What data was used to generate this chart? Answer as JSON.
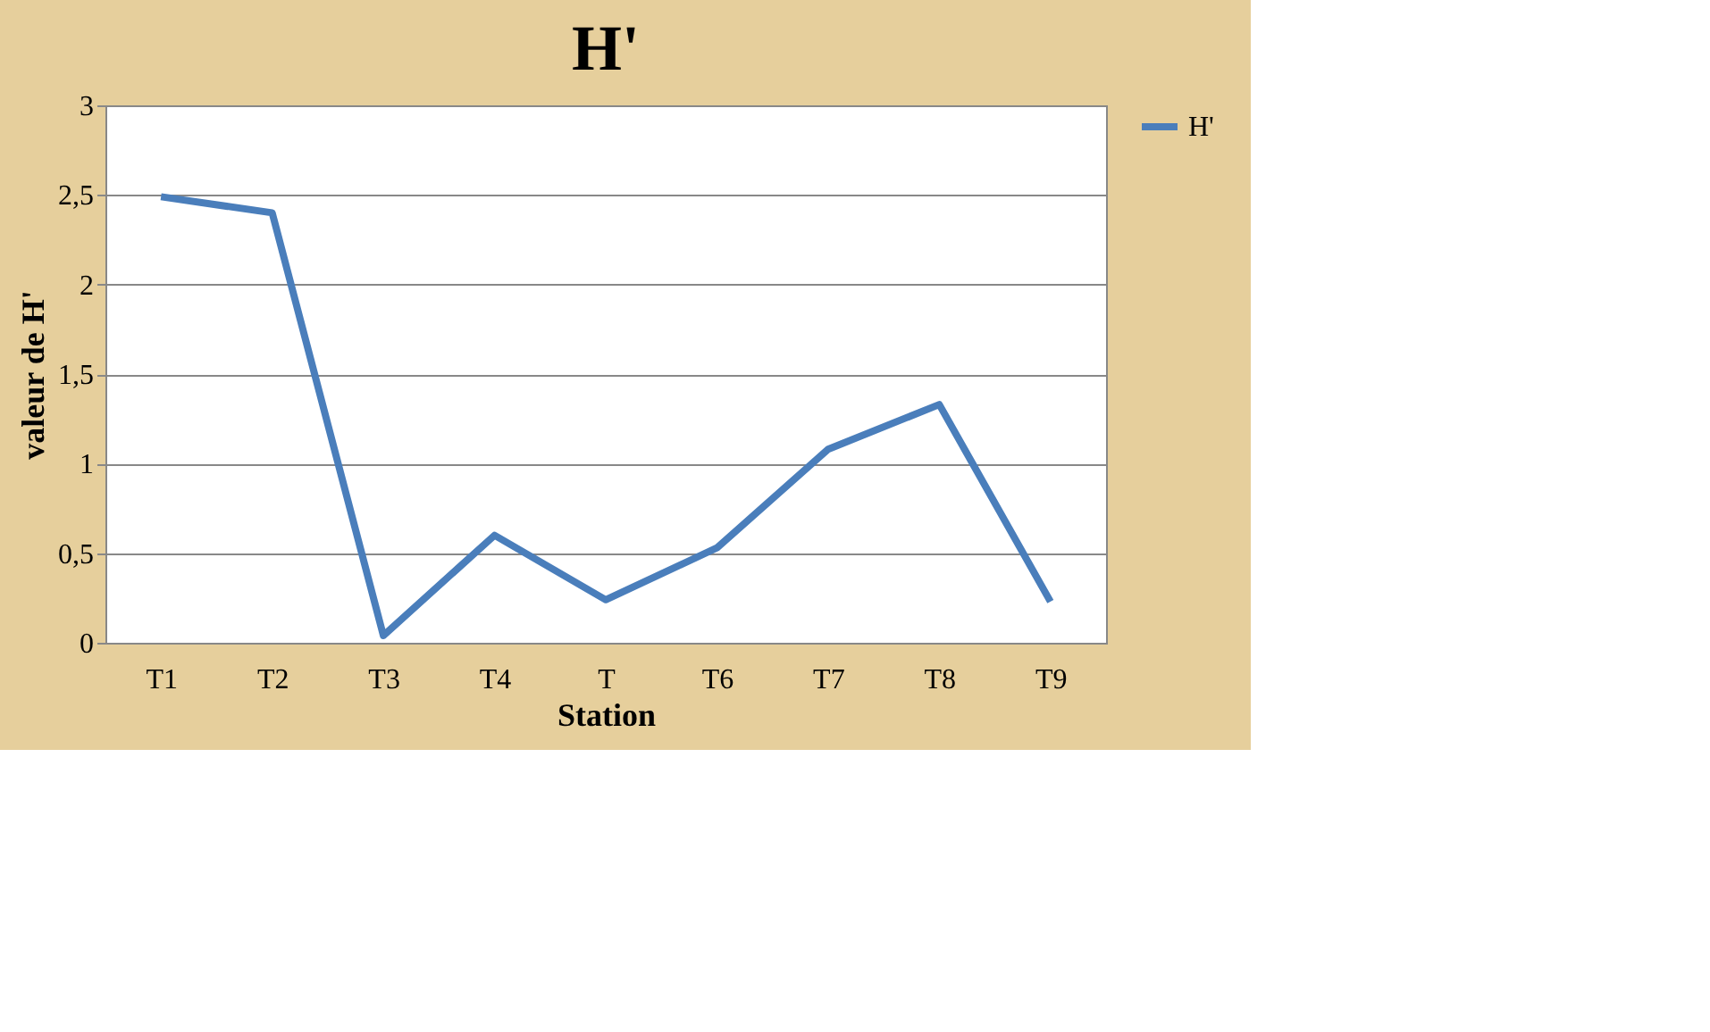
{
  "chart_data": {
    "type": "line",
    "title": "H'",
    "xlabel": "Station",
    "ylabel": "valeur de H'",
    "categories": [
      "T1",
      "T2",
      "T3",
      "T4",
      "T",
      "T6",
      "T7",
      "T8",
      "T9"
    ],
    "series": [
      {
        "name": "H'",
        "color": "#4a7ebb",
        "values": [
          2.49,
          2.4,
          0.04,
          0.6,
          0.24,
          0.53,
          1.08,
          1.33,
          0.23
        ]
      }
    ],
    "ylim": [
      0,
      3
    ],
    "yticks": [
      0,
      {
        "value": 0.5,
        "label": "0,5"
      },
      1,
      {
        "value": 1.5,
        "label": "1,5"
      },
      2,
      {
        "value": 2.5,
        "label": "2,5"
      },
      3
    ],
    "grid": "y",
    "legend": "right",
    "marker": "none",
    "line_style": "solid"
  }
}
